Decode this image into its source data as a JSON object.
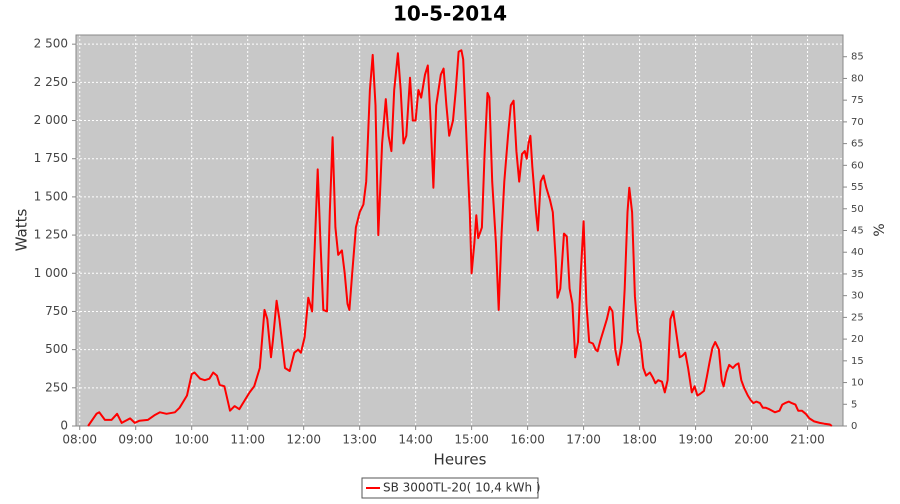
{
  "chart_data": {
    "type": "line",
    "title": "10-5-2014",
    "x_label": "Heures",
    "y_label": "Watts",
    "y2_label": "%",
    "grid": true,
    "legend": "bottom",
    "xlim": [
      "07:56",
      "21:38"
    ],
    "xticks": [
      "08:00",
      "09:00",
      "10:00",
      "11:00",
      "12:00",
      "13:00",
      "14:00",
      "15:00",
      "16:00",
      "17:00",
      "18:00",
      "19:00",
      "20:00",
      "21:00"
    ],
    "ylim": [
      0,
      2560
    ],
    "yticks": [
      0,
      250,
      500,
      750,
      {
        "value": 1000,
        "label": "1 000"
      },
      {
        "value": 1250,
        "label": "1 250"
      },
      {
        "value": 1500,
        "label": "1 500"
      },
      {
        "value": 1750,
        "label": "1 750"
      },
      {
        "value": 2000,
        "label": "2 000"
      },
      {
        "value": 2250,
        "label": "2 250"
      },
      {
        "value": 2500,
        "label": "2 500"
      }
    ],
    "y2lim": [
      0,
      90
    ],
    "y2ticks": [
      0,
      5,
      10,
      15,
      20,
      25,
      30,
      35,
      40,
      45,
      50,
      55,
      60,
      65,
      70,
      75,
      80,
      85
    ],
    "x": [
      "08:09",
      "08:18",
      "08:21",
      "08:27",
      "08:34",
      "08:40",
      "08:45",
      "08:54",
      "08:59",
      "09:04",
      "09:13",
      "09:20",
      "09:26",
      "09:33",
      "09:42",
      "09:47",
      "09:55",
      "10:00",
      "10:03",
      "10:09",
      "10:14",
      "10:19",
      "10:23",
      "10:27",
      "10:30",
      "10:35",
      "10:41",
      "10:46",
      "10:51",
      "10:57",
      "11:02",
      "11:07",
      "11:13",
      "11:18",
      "11:21",
      "11:25",
      "11:27",
      "11:31",
      "11:34",
      "11:40",
      "11:45",
      "11:50",
      "11:54",
      "11:57",
      "12:01",
      "12:05",
      "12:09",
      "12:12",
      "12:15",
      "12:18",
      "12:21",
      "12:25",
      "12:28",
      "12:31",
      "12:34",
      "12:37",
      "12:41",
      "12:44",
      "12:47",
      "12:49",
      "12:52",
      "12:56",
      "13:00",
      "13:04",
      "13:07",
      "13:11",
      "13:14",
      "13:17",
      "13:20",
      "13:24",
      "13:28",
      "13:31",
      "13:34",
      "13:37",
      "13:41",
      "13:44",
      "13:47",
      "13:50",
      "13:54",
      "13:57",
      "14:00",
      "14:03",
      "14:06",
      "14:10",
      "14:13",
      "14:16",
      "14:19",
      "14:22",
      "14:27",
      "14:30",
      "14:33",
      "14:36",
      "14:40",
      "14:43",
      "14:46",
      "14:49",
      "14:51",
      "14:55",
      "14:58",
      "15:00",
      "15:03",
      "15:05",
      "15:07",
      "15:11",
      "15:14",
      "15:17",
      "15:19",
      "15:22",
      "15:26",
      "15:29",
      "15:32",
      "15:35",
      "15:39",
      "15:42",
      "15:45",
      "15:48",
      "15:51",
      "15:54",
      "15:57",
      "15:59",
      "16:01",
      "16:03",
      "16:05",
      "16:09",
      "16:11",
      "16:14",
      "16:17",
      "16:20",
      "16:24",
      "16:27",
      "16:30",
      "16:32",
      "16:35",
      "16:39",
      "16:42",
      "16:45",
      "16:48",
      "16:51",
      "16:54",
      "16:57",
      "17:00",
      "17:03",
      "17:06",
      "17:10",
      "17:13",
      "17:15",
      "17:18",
      "17:21",
      "17:25",
      "17:28",
      "17:31",
      "17:34",
      "17:37",
      "17:41",
      "17:44",
      "17:47",
      "17:49",
      "17:52",
      "17:55",
      "17:58",
      "18:01",
      "18:04",
      "18:07",
      "18:11",
      "18:14",
      "18:17",
      "18:20",
      "18:24",
      "18:27",
      "18:30",
      "18:33",
      "18:36",
      "18:40",
      "18:43",
      "18:46",
      "18:49",
      "18:52",
      "18:56",
      "18:59",
      "19:02",
      "19:05",
      "19:09",
      "19:12",
      "19:15",
      "19:18",
      "19:21",
      "19:25",
      "19:28",
      "19:30",
      "19:33",
      "19:36",
      "19:40",
      "19:43",
      "19:46",
      "19:49",
      "19:52",
      "19:56",
      "19:59",
      "20:02",
      "20:05",
      "20:09",
      "20:12",
      "20:15",
      "20:19",
      "20:25",
      "20:30",
      "20:33",
      "20:36",
      "20:40",
      "20:43",
      "20:47",
      "20:50",
      "20:54",
      "20:58",
      "21:02",
      "21:07",
      "21:13",
      "21:18",
      "21:24",
      "21:26"
    ],
    "series": [
      {
        "name": "SB 3000TL-20( 10,4 kWh )",
        "color": "#ff0000",
        "values": [
          0,
          80,
          90,
          40,
          40,
          80,
          20,
          50,
          20,
          35,
          40,
          70,
          90,
          80,
          90,
          120,
          200,
          340,
          350,
          310,
          300,
          310,
          350,
          330,
          270,
          260,
          100,
          130,
          110,
          170,
          220,
          260,
          380,
          760,
          700,
          450,
          560,
          820,
          700,
          380,
          360,
          480,
          500,
          480,
          580,
          840,
          750,
          1200,
          1680,
          1200,
          760,
          750,
          1400,
          1890,
          1300,
          1120,
          1150,
          1000,
          800,
          760,
          1000,
          1300,
          1400,
          1450,
          1600,
          2200,
          2430,
          2100,
          1250,
          1850,
          2140,
          1900,
          1800,
          2200,
          2440,
          2200,
          1850,
          1900,
          2280,
          2000,
          2000,
          2200,
          2150,
          2300,
          2360,
          2000,
          1560,
          2100,
          2300,
          2340,
          2100,
          1900,
          2000,
          2200,
          2450,
          2460,
          2400,
          1800,
          1400,
          1000,
          1200,
          1380,
          1230,
          1300,
          1800,
          2180,
          2150,
          1600,
          1200,
          760,
          1250,
          1600,
          1900,
          2100,
          2130,
          1800,
          1600,
          1780,
          1800,
          1750,
          1850,
          1900,
          1700,
          1400,
          1280,
          1600,
          1640,
          1560,
          1480,
          1400,
          1100,
          840,
          900,
          1260,
          1240,
          900,
          800,
          450,
          550,
          1000,
          1340,
          800,
          550,
          540,
          500,
          490,
          560,
          620,
          700,
          780,
          750,
          500,
          400,
          550,
          900,
          1400,
          1560,
          1400,
          850,
          620,
          550,
          380,
          330,
          350,
          320,
          280,
          300,
          290,
          220,
          300,
          700,
          750,
          580,
          450,
          460,
          480,
          380,
          220,
          260,
          200,
          210,
          230,
          320,
          420,
          510,
          550,
          500,
          300,
          260,
          350,
          400,
          380,
          400,
          410,
          300,
          250,
          200,
          170,
          150,
          160,
          150,
          120,
          120,
          110,
          90,
          100,
          140,
          150,
          160,
          150,
          140,
          100,
          100,
          80,
          50,
          30,
          20,
          15,
          10,
          0
        ]
      }
    ]
  }
}
